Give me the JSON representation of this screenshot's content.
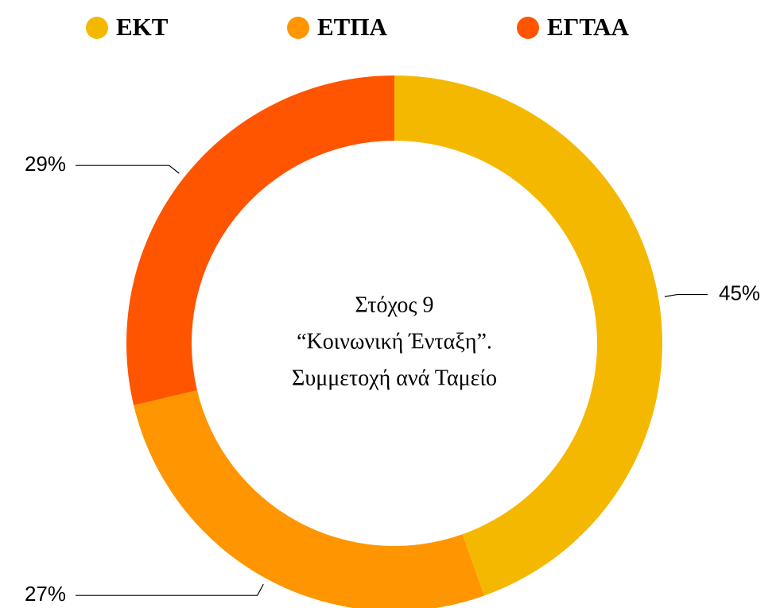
{
  "chart_data": {
    "type": "donut",
    "title": [
      "Στόχος 9",
      "“Κοινωνική Ένταξη”.",
      "Συμμετοχή ανά Ταμείο"
    ],
    "categories": [
      "ΕΚΤ",
      "ΕΤΠΑ",
      "ΕΓΤΑΑ"
    ],
    "values": [
      45,
      27,
      29
    ],
    "value_labels": [
      "45%",
      "27%",
      "29%"
    ],
    "colors": [
      "#f5b800",
      "#ff9500",
      "#ff5400"
    ],
    "legend": "top"
  }
}
